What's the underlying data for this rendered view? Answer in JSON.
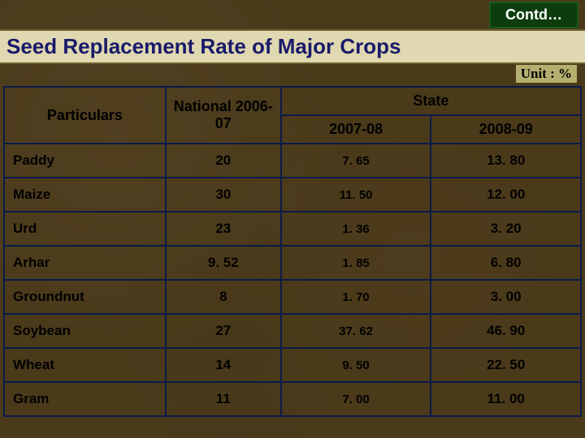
{
  "badge": "Contd…",
  "title": "Seed Replacement Rate of Major Crops",
  "unit_label": "Unit : %",
  "table": {
    "type": "table",
    "header": {
      "particulars": "Particulars",
      "national": "National 2006-07",
      "state": "State",
      "state_2007": "2007-08",
      "state_2008": "2008-09"
    },
    "columns": [
      "Particulars",
      "National 2006-07",
      "State 2007-08",
      "State 2008-09"
    ],
    "col_widths_pct": [
      28,
      20,
      26,
      26
    ],
    "border_color": "#0a1a4a",
    "header_fontsize": 18,
    "body_fontsize": 17,
    "small_fontsize": 15,
    "text_color": "#000000",
    "rows": [
      {
        "crop": "Paddy",
        "national": "20",
        "s2007": "7. 65",
        "s2008": "13. 80"
      },
      {
        "crop": "Maize",
        "national": "30",
        "s2007": "11. 50",
        "s2008": "12. 00"
      },
      {
        "crop": "Urd",
        "national": "23",
        "s2007": "1. 36",
        "s2008": "3. 20"
      },
      {
        "crop": "Arhar",
        "national": "9. 52",
        "s2007": "1. 85",
        "s2008": "6. 80"
      },
      {
        "crop": "Groundnut",
        "national": "8",
        "s2007": "1. 70",
        "s2008": "3. 00"
      },
      {
        "crop": "Soybean",
        "national": "27",
        "s2007": "37. 62",
        "s2008": "46. 90"
      },
      {
        "crop": "Wheat",
        "national": "14",
        "s2007": "9. 50",
        "s2008": "22. 50"
      },
      {
        "crop": "Gram",
        "national": "11",
        "s2007": "7. 00",
        "s2008": "11. 00"
      }
    ]
  },
  "colors": {
    "badge_bg": "#0d3d0d",
    "badge_border": "#1a5a1a",
    "badge_text": "#ffffff",
    "title_bg": "#e0d8b0",
    "title_border": "#6b6030",
    "title_text": "#1a1a6a",
    "unit_bg": "#b5b070",
    "page_bg": "#4a3a1a"
  }
}
